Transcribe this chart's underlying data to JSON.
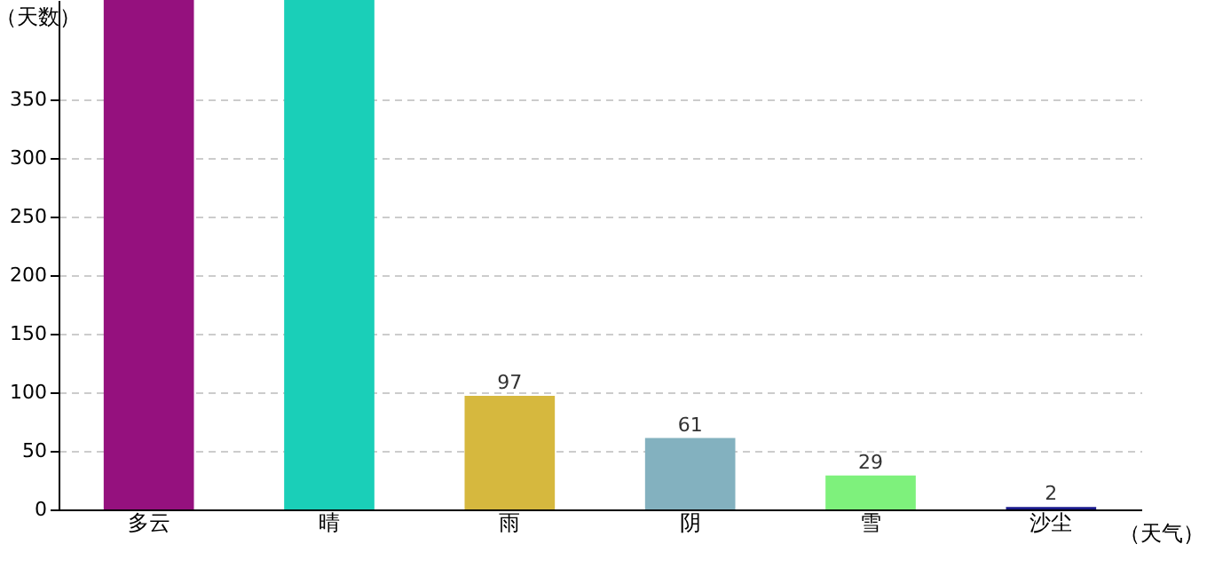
{
  "chart_data": {
    "type": "bar",
    "xlabel": "（天气）",
    "ylabel": "（天数）",
    "categories": [
      "多云",
      "晴",
      "雨",
      "阴",
      "雪",
      "沙尘"
    ],
    "values": [
      435,
      435,
      97,
      61,
      29,
      2
    ],
    "value_labels": [
      null,
      null,
      "97",
      "61",
      "29",
      "2"
    ],
    "colors": [
      "#95117e",
      "#1acfb8",
      "#d6b83e",
      "#83b1bf",
      "#7ef17c",
      "#1a1a8c"
    ],
    "ylim": [
      0,
      435
    ],
    "yticks": [
      0,
      50,
      100,
      150,
      200,
      250,
      300,
      350
    ],
    "grid": "y"
  }
}
